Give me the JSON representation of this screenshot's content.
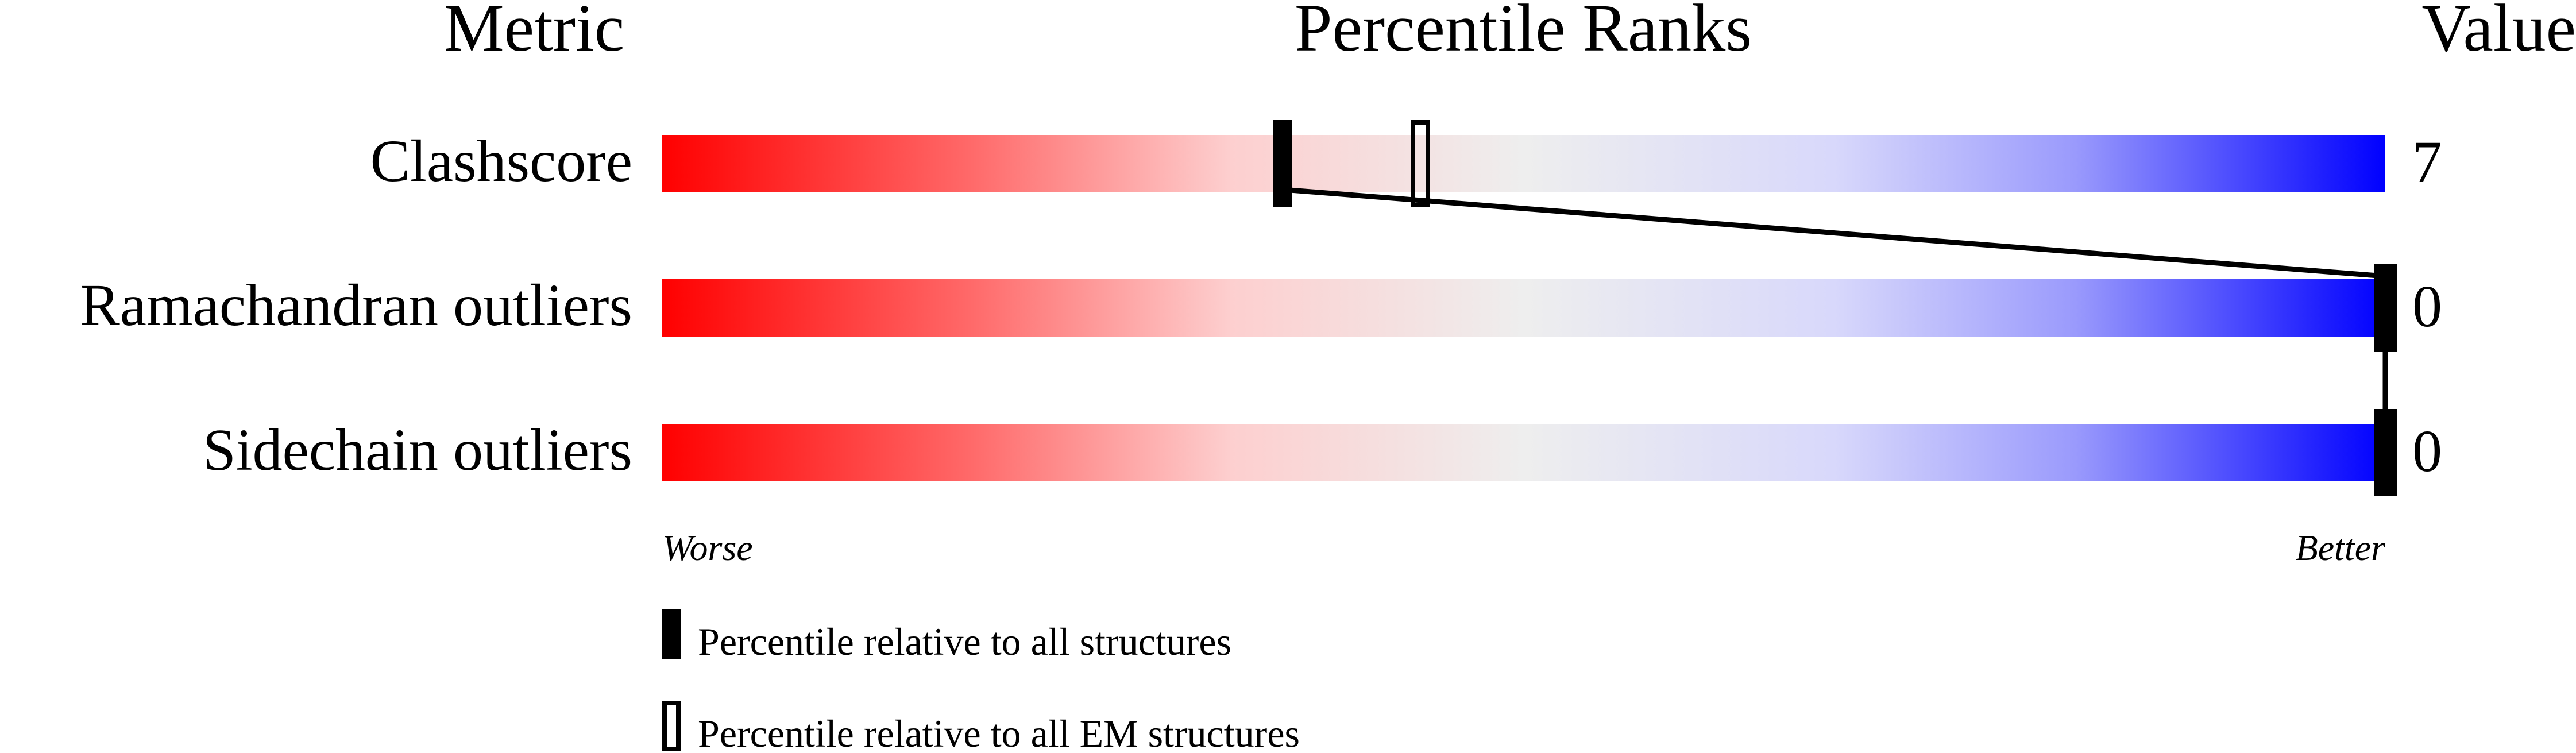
{
  "chart_data": {
    "type": "percentile-slider",
    "headers": {
      "metric": "Metric",
      "percentile": "Percentile Ranks",
      "value": "Value"
    },
    "axis": {
      "left_label": "Worse",
      "right_label": "Better",
      "range": [
        0,
        100
      ]
    },
    "gradient_colors": {
      "worse": "#ff0000",
      "middle": "#eeeeee",
      "better": "#0000ff"
    },
    "metrics": [
      {
        "name": "Clashscore",
        "value": "7",
        "percentile_all": 36,
        "percentile_em": 44
      },
      {
        "name": "Ramachandran outliers",
        "value": "0",
        "percentile_all": 100,
        "percentile_em": null
      },
      {
        "name": "Sidechain outliers",
        "value": "0",
        "percentile_all": 100,
        "percentile_em": null
      }
    ],
    "legend": [
      {
        "marker": "filled",
        "label": "Percentile relative to all structures"
      },
      {
        "marker": "open",
        "label": "Percentile relative to all EM structures"
      }
    ]
  }
}
